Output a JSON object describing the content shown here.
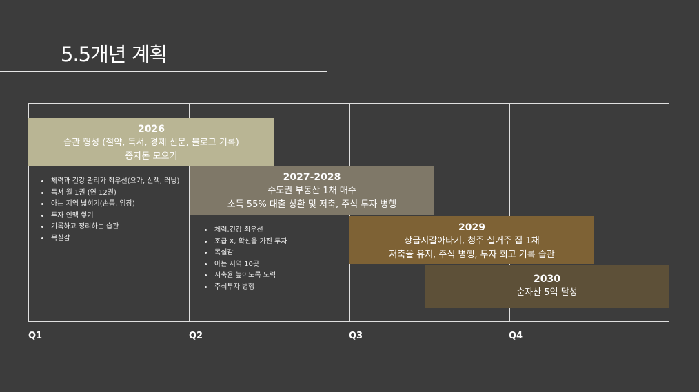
{
  "slide": {
    "title": "5.5개년 계획"
  },
  "timeline": {
    "quarters": [
      "Q1",
      "Q2",
      "Q3",
      "Q4"
    ]
  },
  "bands": [
    {
      "year": "2026",
      "lines": [
        "습관 형성 (절약, 독서, 경제 신문, 블로그 기록)",
        "종자돈 모으기"
      ],
      "color": "#b9b594"
    },
    {
      "year": "2027-2028",
      "lines": [
        "수도권 부동산 1채 매수",
        "소득 55% 대출 상환 및 저축, 주식 투자 병행"
      ],
      "color": "#7f7868"
    },
    {
      "year": "2029",
      "lines": [
        "상급지갈아타기, 청주 실거주 집 1채",
        "저축율 유지, 주식 병행, 투자 회고 기록 습관"
      ],
      "color": "#7e6235"
    },
    {
      "year": "2030",
      "lines": [
        "순자산 5억 달성"
      ],
      "color": "#5d5038"
    }
  ],
  "notes_2026": [
    "체력과 건강 관리가 최우선(요가, 산책, 러닝)",
    "독서 월 1권 (연 12권)",
    "아는 지역 넓히기(손품, 임장)",
    "투자 인맥 쌓기",
    "기록하고 정리하는 습관",
    "목실감"
  ],
  "notes_2027": [
    "체력,건강 최우선",
    "조급 X, 확신을 가진 투자",
    "목실감",
    "아는 지역 10곳",
    "저축율 높이도록 노력",
    "주식투자 병행"
  ]
}
